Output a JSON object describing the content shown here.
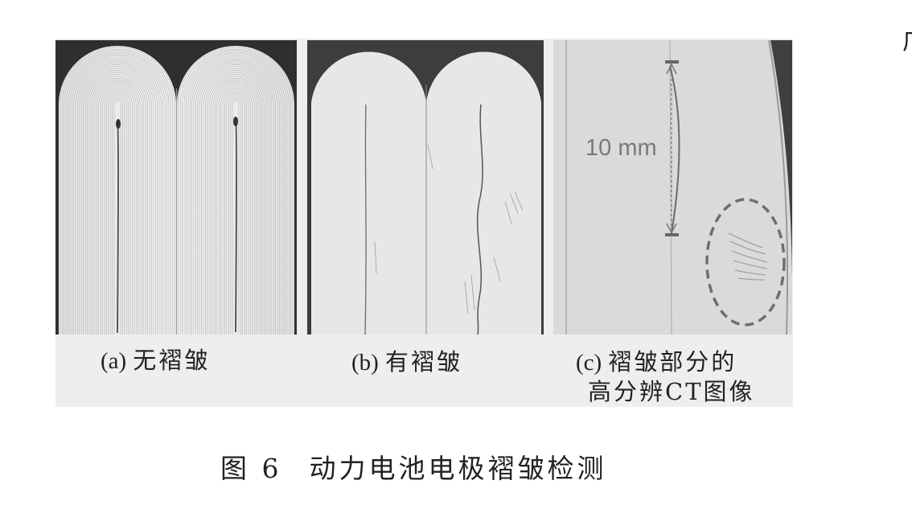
{
  "figure": {
    "panels": [
      {
        "id": "a",
        "tag": "(a)",
        "caption": "无褶皱"
      },
      {
        "id": "b",
        "tag": "(b)",
        "caption": "有褶皱"
      },
      {
        "id": "c",
        "tag": "(c)",
        "caption_line1": "褶皱部分的",
        "caption_line2": "高分辨CT图像",
        "scale_text": "10 mm"
      }
    ],
    "caption": {
      "number": "图 6",
      "title": "动力电池电极褶皱检测"
    },
    "edge_mark": "广"
  }
}
